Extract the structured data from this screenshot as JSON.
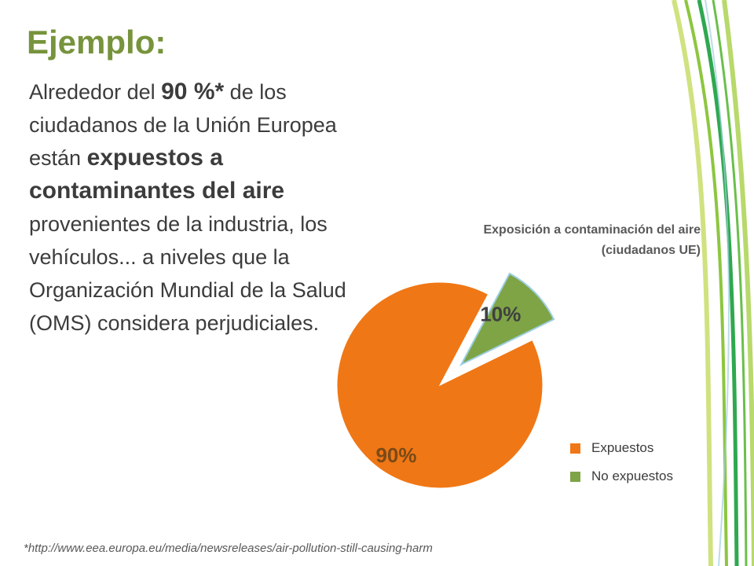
{
  "slide": {
    "title": "Ejemplo:",
    "body": {
      "p1": "Alrededor del ",
      "p2": "90 %*",
      "p3": " de los ciudadanos de la Unión Europea están ",
      "p4": "expuestos a contaminantes del aire",
      "p5": " provenientes de la industria, los vehículos... a niveles que la Organización Mundial de la Salud (OMS) considera perjudiciales."
    },
    "footnote": "*http://www.eea.europa.eu/media/newsreleases/air-pollution-still-causing-harm"
  },
  "colors": {
    "title": "#77933c",
    "expuestos": "#f07715",
    "no_expuestos": "#7ea446"
  },
  "chart_data": {
    "type": "pie",
    "title": [
      "Exposición a contaminación del aire",
      "(ciudadanos UE)"
    ],
    "slices": [
      {
        "label": "Expuestos",
        "value": 90,
        "display": "90%",
        "color": "#f07715",
        "exploded": false
      },
      {
        "label": "No expuestos",
        "value": 10,
        "display": "10%",
        "color": "#7ea446",
        "exploded": true
      }
    ],
    "legend_position": "bottom-right"
  }
}
